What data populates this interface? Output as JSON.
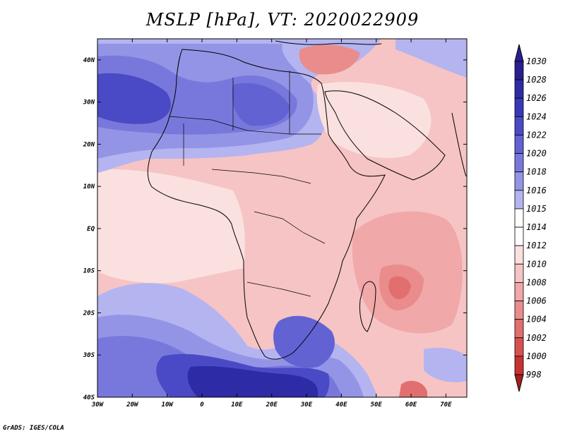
{
  "title": "MSLP [hPa], VT: 2020022909",
  "footer": "GrADS: IGES/COLA",
  "map": {
    "lon_range": [
      -30,
      76
    ],
    "lat_range": [
      -40,
      45
    ],
    "lon_ticks": [
      {
        "value": -30,
        "label": "30W"
      },
      {
        "value": -20,
        "label": "20W"
      },
      {
        "value": -10,
        "label": "10W"
      },
      {
        "value": 0,
        "label": "0"
      },
      {
        "value": 10,
        "label": "10E"
      },
      {
        "value": 20,
        "label": "20E"
      },
      {
        "value": 30,
        "label": "30E"
      },
      {
        "value": 40,
        "label": "40E"
      },
      {
        "value": 50,
        "label": "50E"
      },
      {
        "value": 60,
        "label": "60E"
      },
      {
        "value": 70,
        "label": "70E"
      }
    ],
    "lat_ticks": [
      {
        "value": 40,
        "label": "40N"
      },
      {
        "value": 30,
        "label": "30N"
      },
      {
        "value": 20,
        "label": "20N"
      },
      {
        "value": 10,
        "label": "10N"
      },
      {
        "value": 0,
        "label": "EQ"
      },
      {
        "value": -10,
        "label": "10S"
      },
      {
        "value": -20,
        "label": "20S"
      },
      {
        "value": -30,
        "label": "30S"
      },
      {
        "value": -40,
        "label": "40S"
      }
    ]
  },
  "colorbar": {
    "levels": [
      {
        "label": "1030",
        "color": "#2a1f8f"
      },
      {
        "label": "1028",
        "color": "#2d2ba6"
      },
      {
        "label": "1026",
        "color": "#3838b8"
      },
      {
        "label": "1024",
        "color": "#4a4ac6"
      },
      {
        "label": "1022",
        "color": "#6262d2"
      },
      {
        "label": "1020",
        "color": "#7878dc"
      },
      {
        "label": "1018",
        "color": "#9494e6"
      },
      {
        "label": "1016",
        "color": "#b4b4f0"
      },
      {
        "label": "1015",
        "color": "#d8d8f8"
      },
      {
        "label": "1014",
        "color": "#ffffff"
      },
      {
        "label": "1012",
        "color": "#fbe0e0"
      },
      {
        "label": "1010",
        "color": "#f6c4c4"
      },
      {
        "label": "1008",
        "color": "#f0a8a8"
      },
      {
        "label": "1006",
        "color": "#ea8c8c"
      },
      {
        "label": "1004",
        "color": "#e26f6f"
      },
      {
        "label": "1002",
        "color": "#d85050"
      },
      {
        "label": "1000",
        "color": "#c83232"
      },
      {
        "label": "998",
        "color": "#a81e1e"
      }
    ]
  }
}
